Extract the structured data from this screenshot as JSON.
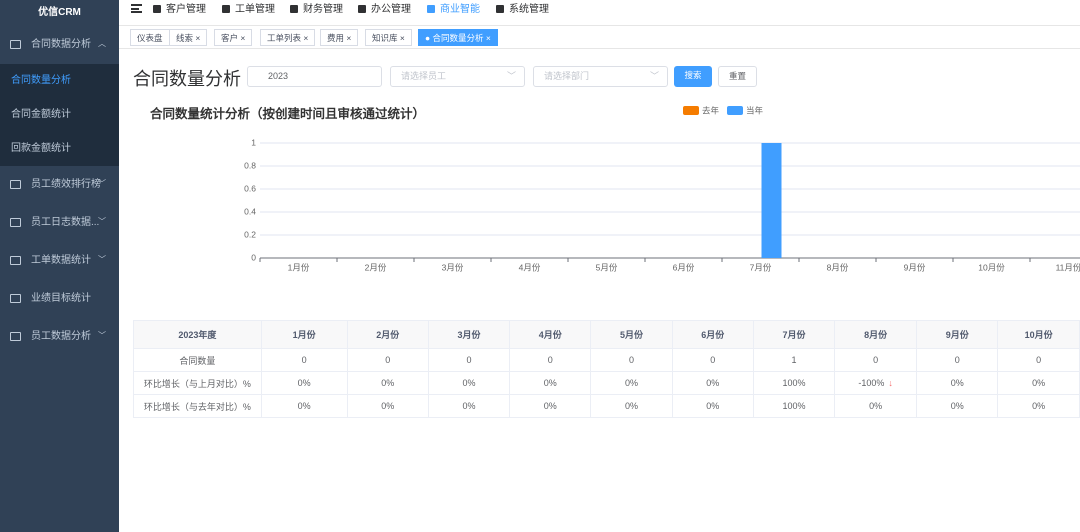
{
  "sidebar": {
    "brand": "优信CRM",
    "menu": [
      "合同数据分析",
      "员工绩效排行榜",
      "员工日志数据...",
      "工单数据统计",
      "业绩目标统计",
      "员工数据分析"
    ],
    "submenu": [
      "合同数量分析",
      "合同金额统计",
      "回款金额统计"
    ]
  },
  "topnav": [
    "客户管理",
    "工单管理",
    "财务管理",
    "办公管理",
    "商业智能",
    "系统管理"
  ],
  "tabs": [
    "仪表盘",
    "线索",
    "客户",
    "工单列表",
    "费用",
    "知识库",
    "合同数量分析"
  ],
  "page_title": "合同数量分析",
  "filters": {
    "year": "2023",
    "employee": "请选择员工",
    "department": "请选择部门",
    "search": "搜索",
    "reset": "重置"
  },
  "chart_data": {
    "type": "bar",
    "title": "合同数量统计分析（按创建时间且审核通过统计）",
    "categories": [
      "1月份",
      "2月份",
      "3月份",
      "4月份",
      "5月份",
      "6月份",
      "7月份",
      "8月份",
      "9月份",
      "10月份",
      "11月份"
    ],
    "series": [
      {
        "name": "去年",
        "color": "#f57c00",
        "values": [
          0,
          0,
          0,
          0,
          0,
          0,
          0,
          0,
          0,
          0,
          0
        ]
      },
      {
        "name": "当年",
        "color": "#409eff",
        "values": [
          0,
          0,
          0,
          0,
          0,
          0,
          1,
          0,
          0,
          0,
          0
        ]
      }
    ],
    "ylim": [
      0,
      1
    ],
    "yticks": [
      0,
      0.2,
      0.4,
      0.6,
      0.8,
      1
    ],
    "grid": true
  },
  "table": {
    "header": [
      "2023年度",
      "1月份",
      "2月份",
      "3月份",
      "4月份",
      "5月份",
      "6月份",
      "7月份",
      "8月份",
      "9月份",
      "10月份"
    ],
    "rows": [
      [
        "合同数量",
        0,
        0,
        0,
        0,
        0,
        0,
        1,
        0,
        0,
        0
      ],
      [
        "环比增长（与上月对比）%",
        "0%",
        "0%",
        "0%",
        "0%",
        "0%",
        "0%",
        "100%",
        "-100%",
        "0%",
        "0%"
      ],
      [
        "环比增长（与去年对比）%",
        "0%",
        "0%",
        "0%",
        "0%",
        "0%",
        "0%",
        "100%",
        "0%",
        "0%",
        "0%"
      ]
    ]
  }
}
